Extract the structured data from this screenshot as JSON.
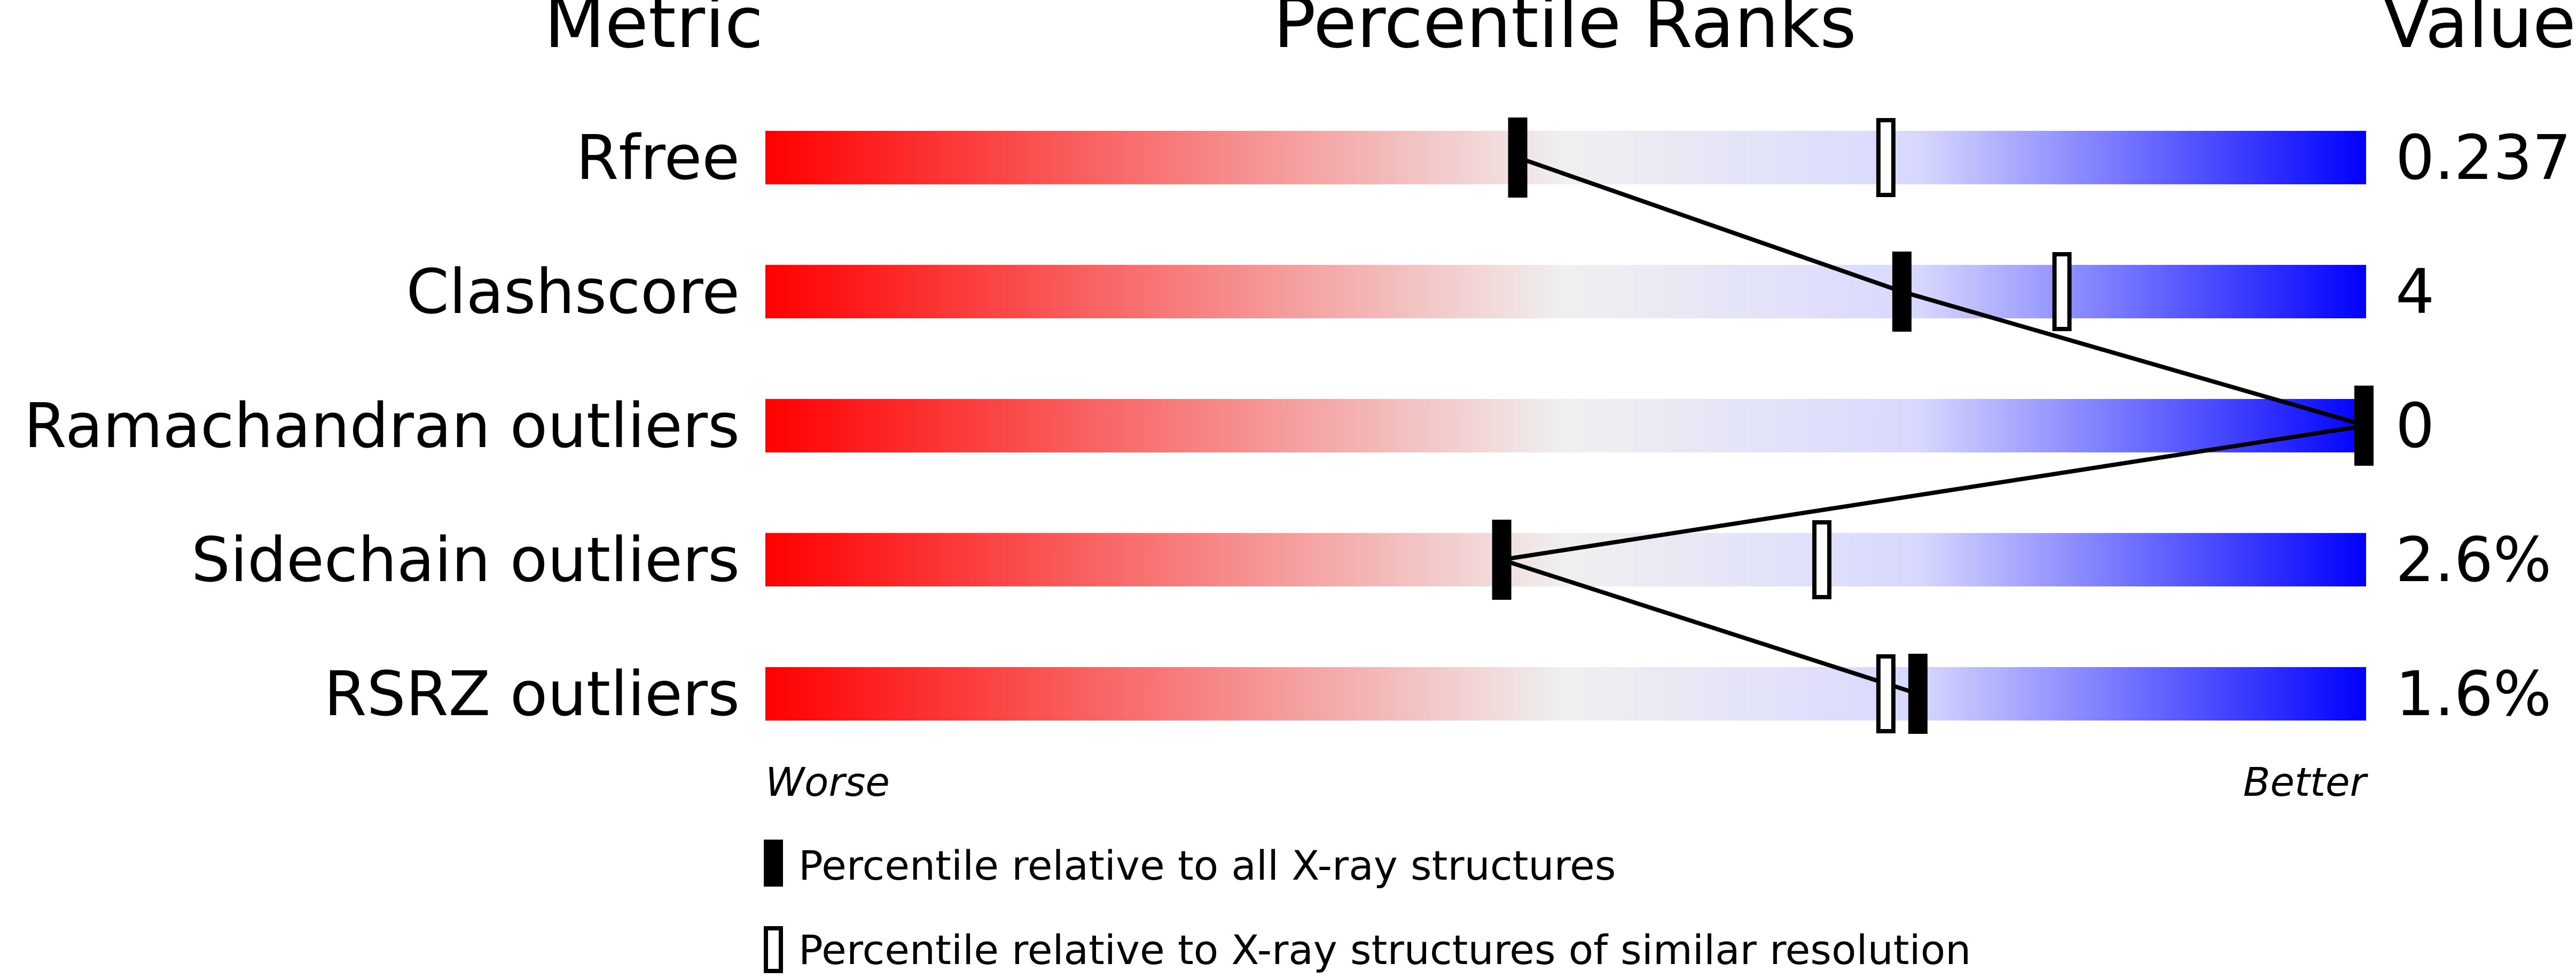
{
  "chart_data": {
    "type": "percentile-bar",
    "headers": {
      "metric": "Metric",
      "ranks": "Percentile Ranks",
      "value": "Value"
    },
    "xlim": [
      0,
      100
    ],
    "gradient_colors": {
      "worse": "#ff0000",
      "middle": "#f0f0f0",
      "better": "#0000ff"
    },
    "rows": [
      {
        "metric": "Rfree",
        "value": "0.237",
        "percentile_all": 47,
        "percentile_similar": 70
      },
      {
        "metric": "Clashscore",
        "value": "4",
        "percentile_all": 71,
        "percentile_similar": 81
      },
      {
        "metric": "Ramachandran outliers",
        "value": "0",
        "percentile_all": 100,
        "percentile_similar": null
      },
      {
        "metric": "Sidechain outliers",
        "value": "2.6%",
        "percentile_all": 46,
        "percentile_similar": 66
      },
      {
        "metric": "RSRZ outliers",
        "value": "1.6%",
        "percentile_all": 72,
        "percentile_similar": 70
      }
    ],
    "axis_labels": {
      "left": "Worse",
      "right": "Better"
    },
    "legend": [
      {
        "marker": "filled",
        "label": "Percentile relative to all X-ray structures"
      },
      {
        "marker": "hollow",
        "label": "Percentile relative to X-ray structures of similar resolution"
      }
    ]
  }
}
